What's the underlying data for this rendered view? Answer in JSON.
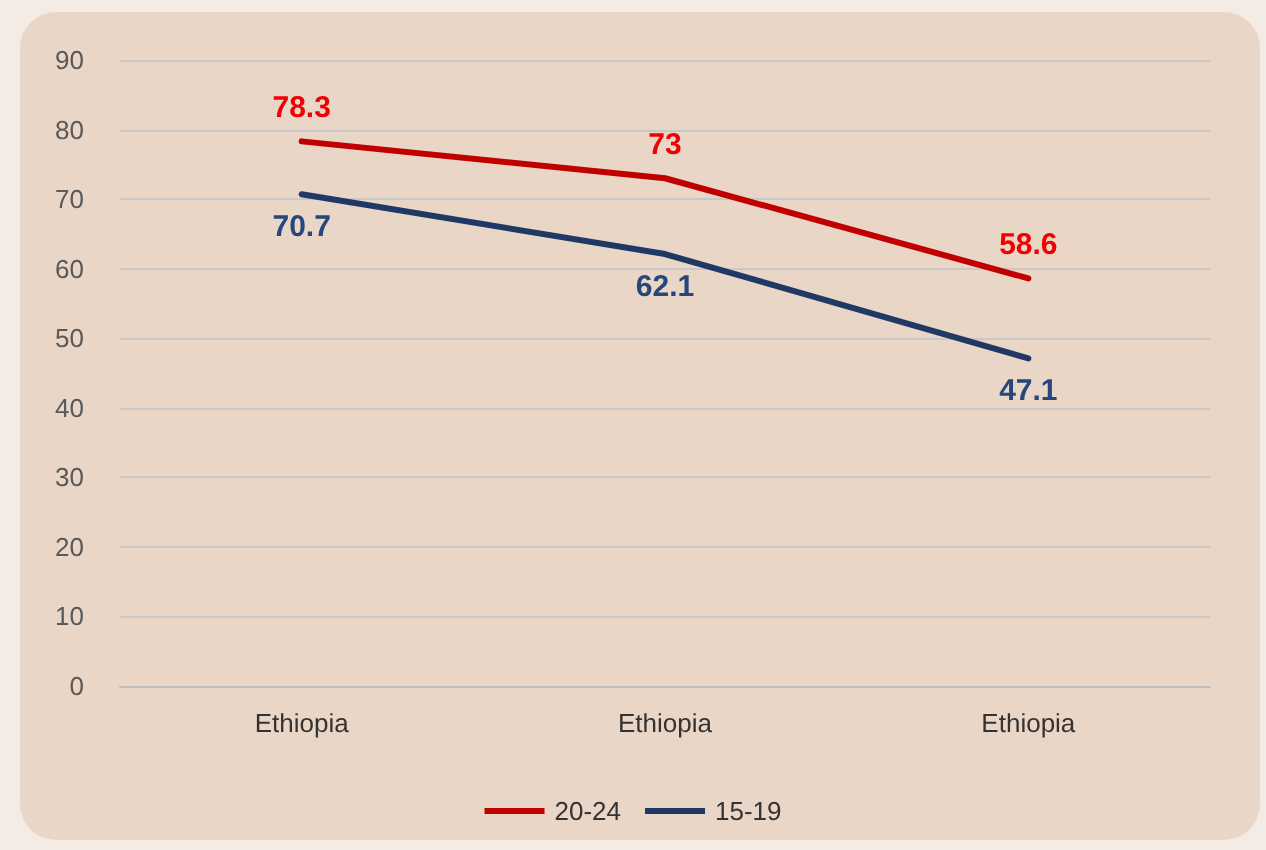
{
  "chart_data": {
    "type": "line",
    "categories": [
      "Ethiopia",
      "Ethiopia",
      "Ethiopia"
    ],
    "series": [
      {
        "name": "20-24",
        "color": "#c00000",
        "values": [
          78.3,
          73,
          58.6
        ]
      },
      {
        "name": "15-19",
        "color": "#1f3864",
        "values": [
          70.7,
          62.1,
          47.1
        ]
      }
    ],
    "ylim": [
      0,
      90
    ],
    "yticks": [
      0,
      10,
      20,
      30,
      40,
      50,
      60,
      70,
      80,
      90
    ],
    "grid": "y",
    "legend": "bottom",
    "data_labels": true,
    "marker": "none",
    "line_style": "solid"
  }
}
